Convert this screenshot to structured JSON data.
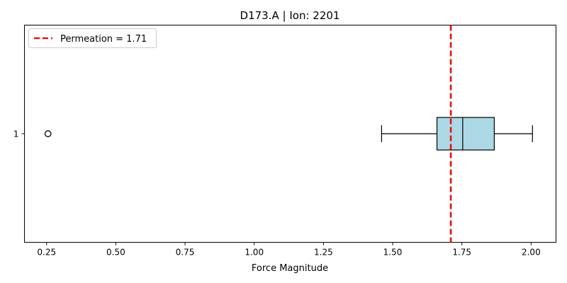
{
  "chart_data": {
    "type": "boxplot",
    "title": "D173.A | Ion: 2201",
    "xlabel": "Force Magnitude",
    "ylabel": "",
    "xlim": [
      0.17,
      2.09
    ],
    "xticks": [
      "0.25",
      "0.50",
      "0.75",
      "1.00",
      "1.25",
      "1.50",
      "1.75",
      "2.00"
    ],
    "categories": [
      "1"
    ],
    "boxes": [
      {
        "category": "1",
        "whisker_low": 1.46,
        "q1": 1.66,
        "median": 1.753,
        "q3": 1.867,
        "whisker_high": 2.005,
        "outliers": [
          0.255
        ]
      }
    ],
    "reference_line": {
      "label": "Permeation = 1.71",
      "value": 1.71,
      "color": "#e8120c",
      "style": "dashed"
    },
    "box_color": "#add8e6",
    "legend_position": "upper-left",
    "grid": false
  }
}
